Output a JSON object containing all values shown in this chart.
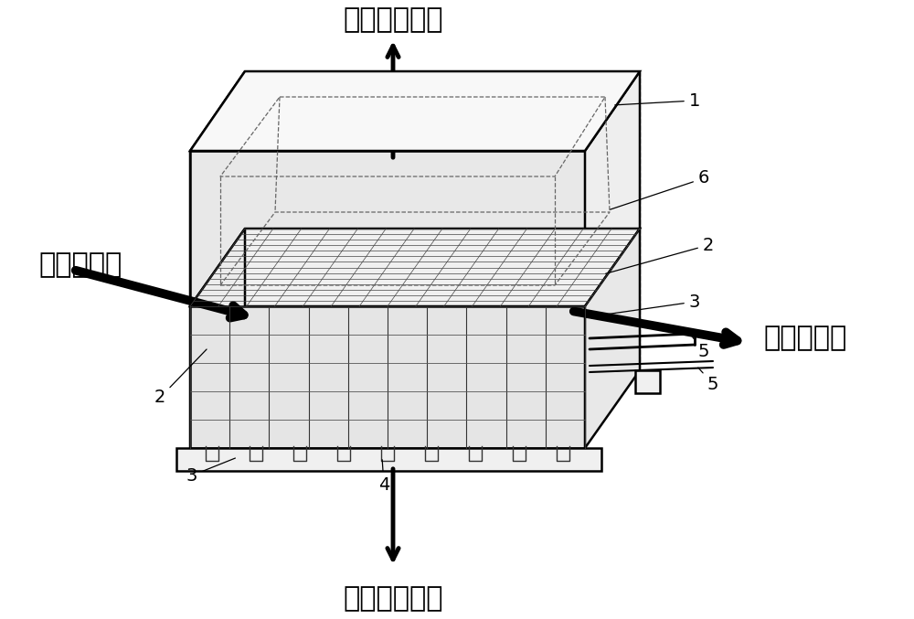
{
  "bg_color": "#ffffff",
  "line_color": "#000000",
  "label_top": "天空辐射散热",
  "label_bottom": "热电效应散热",
  "label_left": "冷却剂输入",
  "label_right": "冷却剂输出",
  "figsize": [
    10.0,
    6.77
  ],
  "dpi": 100
}
